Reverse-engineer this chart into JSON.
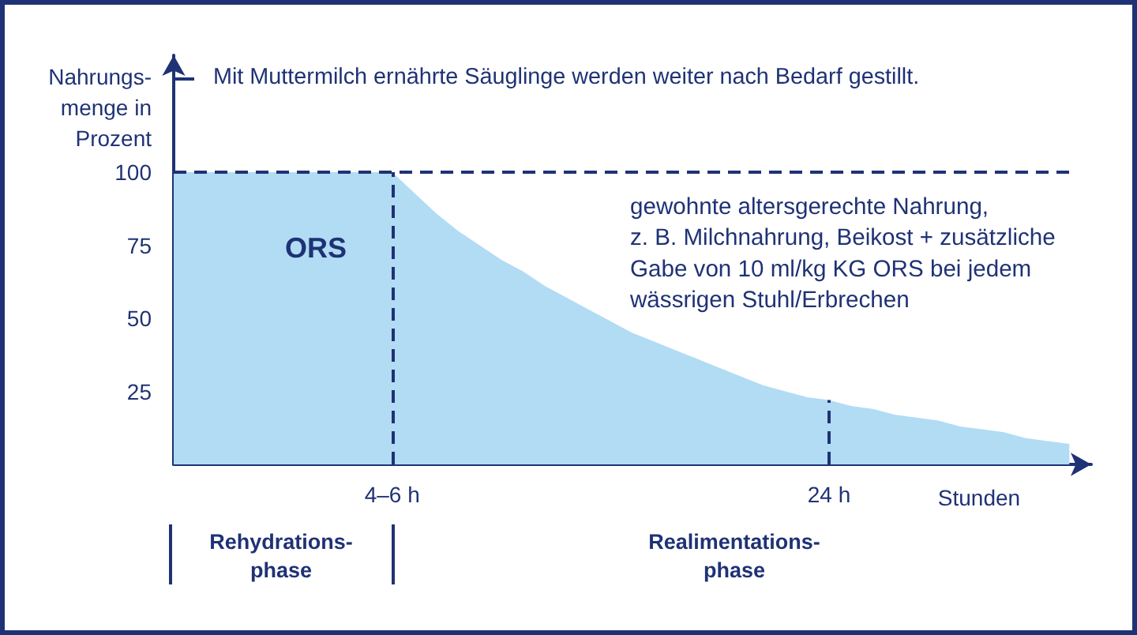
{
  "chart_data": {
    "type": "area",
    "ylabel": "Nahrungs-\nmenge in\nProzent",
    "xlabel": "Stunden",
    "categories": [
      null,
      null,
      null,
      null,
      null,
      null,
      null,
      null,
      null,
      null,
      "4–6 h",
      null,
      null,
      null,
      null,
      null,
      null,
      null,
      null,
      null,
      null,
      null,
      null,
      null,
      null,
      null,
      null,
      null,
      null,
      null,
      "24 h",
      null,
      null,
      null,
      null,
      null,
      null,
      null,
      null,
      null,
      null,
      null,
      null
    ],
    "values": [
      100,
      100,
      100,
      100,
      100,
      100,
      100,
      100,
      100,
      100,
      100,
      93,
      86,
      80,
      75,
      70,
      66,
      61,
      57,
      53,
      49,
      45,
      42,
      39,
      36,
      33,
      30,
      27,
      25,
      23,
      22,
      20,
      19,
      17,
      16,
      15,
      13,
      12,
      11,
      9,
      8,
      7,
      null
    ],
    "color": "#b1dcf4",
    "ylim": [
      0,
      140
    ],
    "yticks": [
      25,
      50,
      75,
      100,
      {
        "value": 132,
        "label": null
      }
    ],
    "ref_lines": [
      {
        "axis": "y",
        "value": 100,
        "color": "#1f3275",
        "line_style": "dashed"
      },
      {
        "axis": "x",
        "value": "4–6 h",
        "color": "#1f3275",
        "line_style": "dashed"
      },
      {
        "axis": "x",
        "value": "24 h",
        "color": "#1f3275",
        "line_style": "dashed"
      }
    ],
    "annotations": [
      "Mit Muttermilch ernährte Säuglinge werden weiter nach Bedarf gestillt.",
      "ORS",
      "gewohnte altersgerechte Nahrung,\nz. B. Milchnahrung, Beikost + zusätzliche\nGabe von 10 ml/kg KG ORS bei jedem\nwässrigen Stuhl/Erbrechen",
      "Rehydrations-\nphase",
      "Realimentations-\nphase"
    ]
  }
}
